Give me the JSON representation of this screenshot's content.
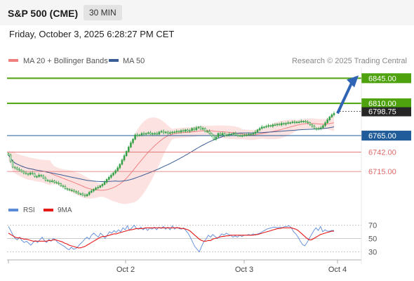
{
  "header": {
    "title": "S&P 500 (CME)",
    "interval": "30 MIN"
  },
  "datetime": "Friday, October 3, 2025 6:28:27 PM CET",
  "legend": {
    "ma20": "MA 20 + Bollinger Bands",
    "ma50": "MA 50",
    "credit": "Research © 2025 Trading Central",
    "rsi": "RSI",
    "rsi_ma": "9MA"
  },
  "colors": {
    "candle": "#33a146",
    "ma20": "#f08080",
    "ma50": "#3a5d95",
    "band_fill": "#fde2e2",
    "resistance": "#4da20d",
    "support_blue": "#1f5c99",
    "support_red": "#e06a6a",
    "price_label": "#262626",
    "rsi_line": "#5b8ad8",
    "rsi_ma": "#e61919",
    "arrow": "#2f63b3"
  },
  "chart_data": [
    {
      "type": "candlestick",
      "x_ticks": [
        "Oct 2",
        "Oct 3",
        "Oct 4"
      ],
      "y_range": [
        6675,
        6860
      ],
      "levels": [
        {
          "value": 6845,
          "label": "6845.00",
          "kind": "resistance"
        },
        {
          "value": 6810,
          "label": "6810.00",
          "kind": "resistance"
        },
        {
          "value": 6765,
          "label": "6765.00",
          "kind": "support"
        },
        {
          "value": 6742,
          "label": "6742.00",
          "kind": "support-minor"
        },
        {
          "value": 6715,
          "label": "6715.00",
          "kind": "support-minor"
        }
      ],
      "last_price": {
        "value": 6798.75,
        "label": "6798.75"
      },
      "arrow": {
        "from": 6796,
        "to": 6845
      },
      "close": [
        6738,
        6729,
        6721,
        6720,
        6718,
        6717,
        6715,
        6713,
        6712,
        6711,
        6713,
        6712,
        6708,
        6708,
        6710,
        6709,
        6706,
        6703,
        6702,
        6701,
        6702,
        6700,
        6699,
        6698,
        6695,
        6694,
        6691,
        6690,
        6689,
        6689,
        6687,
        6686,
        6684,
        6684,
        6682,
        6681,
        6683,
        6686,
        6688,
        6690,
        6692,
        6693,
        6695,
        6697,
        6700,
        6704,
        6707,
        6710,
        6713,
        6716,
        6720,
        6725,
        6731,
        6737,
        6743,
        6749,
        6755,
        6760,
        6766,
        6765,
        6766,
        6768,
        6767,
        6768,
        6769,
        6767,
        6768,
        6768,
        6767,
        6770,
        6771,
        6769,
        6770,
        6768,
        6769,
        6770,
        6770,
        6771,
        6770,
        6772,
        6771,
        6773,
        6771,
        6772,
        6775,
        6773,
        6776,
        6777,
        6774,
        6775,
        6771,
        6771,
        6768,
        6765,
        6760,
        6763,
        6768,
        6766,
        6768,
        6765,
        6766,
        6767,
        6767,
        6768,
        6766,
        6765,
        6765,
        6765,
        6766,
        6766,
        6767,
        6767,
        6768,
        6770,
        6773,
        6775,
        6777,
        6777,
        6778,
        6779,
        6778,
        6780,
        6780,
        6781,
        6780,
        6782,
        6781,
        6782,
        6783,
        6783,
        6784,
        6783,
        6784,
        6784,
        6785,
        6785,
        6784,
        6783,
        6780,
        6778,
        6775,
        6774,
        6775,
        6776,
        6779,
        6783,
        6787,
        6791,
        6794,
        6796
      ]
    },
    {
      "type": "line",
      "title": "RSI",
      "y_range": [
        20,
        80
      ],
      "y_ticks": [
        70,
        50,
        30
      ],
      "series": [
        {
          "name": "RSI",
          "values": [
            68,
            62,
            55,
            50,
            48,
            52,
            47,
            44,
            46,
            43,
            40,
            44,
            47,
            44,
            48,
            52,
            47,
            44,
            49,
            46,
            50,
            48,
            44,
            42,
            40,
            38,
            35,
            33,
            37,
            34,
            35,
            38,
            42,
            45,
            49,
            52,
            49,
            55,
            58,
            55,
            52,
            58,
            55,
            50,
            55,
            60,
            58,
            62,
            59,
            63,
            60,
            66,
            63,
            69,
            62,
            66,
            70,
            65,
            64,
            67,
            63,
            66,
            62,
            66,
            64,
            67,
            63,
            67,
            65,
            68,
            64,
            67,
            63,
            69,
            64,
            67,
            65,
            64,
            66,
            62,
            58,
            52,
            45,
            38,
            34,
            30,
            38,
            45,
            49,
            55,
            52,
            56,
            53,
            50,
            53,
            57,
            55,
            58,
            56,
            55,
            52,
            54,
            52,
            55,
            53,
            55,
            55,
            56,
            55,
            57,
            55,
            57,
            58,
            60,
            62,
            64,
            65,
            66,
            67,
            67,
            66,
            67,
            66,
            68,
            68,
            69,
            66,
            60,
            57,
            52,
            46,
            41,
            39,
            44,
            50,
            56,
            62,
            66,
            62,
            68,
            60,
            63,
            61,
            61,
            62,
            62
          ]
        },
        {
          "name": "9MA",
          "values": [
            58,
            56,
            54,
            52,
            51,
            51,
            50,
            49,
            49,
            48,
            47,
            46,
            46,
            46,
            46,
            46,
            46,
            46,
            47,
            47,
            48,
            48,
            47,
            46,
            45,
            43,
            42,
            40,
            39,
            38,
            37,
            36,
            36,
            37,
            38,
            40,
            42,
            44,
            46,
            48,
            50,
            52,
            53,
            53,
            54,
            55,
            56,
            57,
            57,
            58,
            59,
            60,
            61,
            62,
            63,
            63,
            64,
            65,
            65,
            65,
            65,
            66,
            66,
            66,
            66,
            66,
            66,
            66,
            66,
            66,
            66,
            66,
            66,
            66,
            66,
            66,
            66,
            65,
            65,
            64,
            63,
            61,
            58,
            55,
            52,
            49,
            47,
            46,
            46,
            47,
            47,
            49,
            50,
            51,
            52,
            53,
            53,
            54,
            54,
            55,
            55,
            55,
            55,
            55,
            55,
            55,
            55,
            55,
            55,
            55,
            56,
            56,
            57,
            58,
            59,
            60,
            61,
            62,
            63,
            64,
            65,
            65,
            66,
            66,
            66,
            66,
            66,
            65,
            64,
            62,
            59,
            56,
            53,
            50,
            48,
            48,
            50,
            52,
            54,
            56,
            57,
            58,
            59,
            60,
            61,
            61
          ]
        }
      ]
    }
  ]
}
